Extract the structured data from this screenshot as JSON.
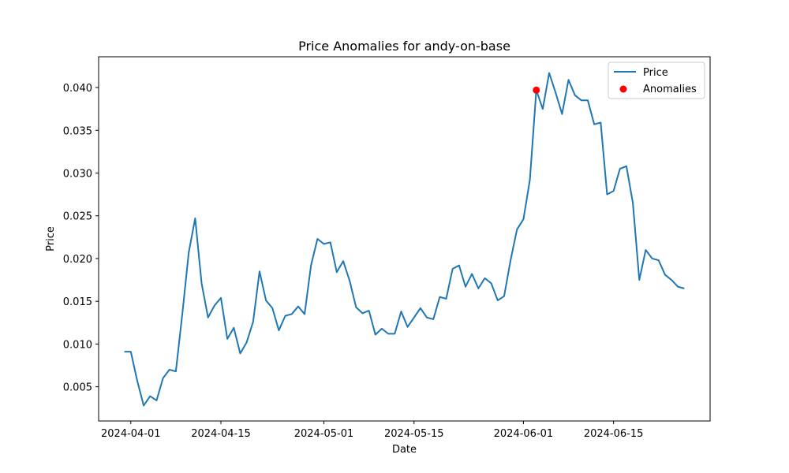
{
  "chart_data": {
    "type": "line",
    "title": "Price Anomalies for andy-on-base",
    "xlabel": "Date",
    "ylabel": "Price",
    "xlim": [
      "2024-03-27",
      "2024-06-30"
    ],
    "ylim": [
      0.001,
      0.0436
    ],
    "x_ticks": [
      "2024-04-01",
      "2024-04-15",
      "2024-05-01",
      "2024-05-15",
      "2024-06-01",
      "2024-06-15"
    ],
    "y_ticks": [
      0.005,
      0.01,
      0.015,
      0.02,
      0.025,
      0.03,
      0.035,
      0.04
    ],
    "y_tick_labels": [
      "0.005",
      "0.010",
      "0.015",
      "0.020",
      "0.025",
      "0.030",
      "0.035",
      "0.040"
    ],
    "grid": false,
    "legend_position": "top-right",
    "colors": {
      "line": "#1f77b4",
      "anomaly": "#ff0000"
    },
    "series": [
      {
        "name": "Price",
        "type": "line",
        "x": [
          "2024-03-31",
          "2024-04-01",
          "2024-04-02",
          "2024-04-03",
          "2024-04-04",
          "2024-04-05",
          "2024-04-06",
          "2024-04-07",
          "2024-04-08",
          "2024-04-09",
          "2024-04-10",
          "2024-04-11",
          "2024-04-12",
          "2024-04-13",
          "2024-04-14",
          "2024-04-15",
          "2024-04-16",
          "2024-04-17",
          "2024-04-18",
          "2024-04-19",
          "2024-04-20",
          "2024-04-21",
          "2024-04-22",
          "2024-04-23",
          "2024-04-24",
          "2024-04-25",
          "2024-04-26",
          "2024-04-27",
          "2024-04-28",
          "2024-04-29",
          "2024-04-30",
          "2024-05-01",
          "2024-05-02",
          "2024-05-03",
          "2024-05-04",
          "2024-05-05",
          "2024-05-06",
          "2024-05-07",
          "2024-05-08",
          "2024-05-09",
          "2024-05-10",
          "2024-05-11",
          "2024-05-12",
          "2024-05-13",
          "2024-05-14",
          "2024-05-15",
          "2024-05-16",
          "2024-05-17",
          "2024-05-18",
          "2024-05-19",
          "2024-05-20",
          "2024-05-21",
          "2024-05-22",
          "2024-05-23",
          "2024-05-24",
          "2024-05-25",
          "2024-05-26",
          "2024-05-27",
          "2024-05-28",
          "2024-05-29",
          "2024-05-30",
          "2024-05-31",
          "2024-06-01",
          "2024-06-02",
          "2024-06-03",
          "2024-06-04",
          "2024-06-05",
          "2024-06-06",
          "2024-06-07",
          "2024-06-08",
          "2024-06-09",
          "2024-06-10",
          "2024-06-11",
          "2024-06-12",
          "2024-06-13",
          "2024-06-14",
          "2024-06-15",
          "2024-06-16",
          "2024-06-17",
          "2024-06-18",
          "2024-06-19",
          "2024-06-20",
          "2024-06-21",
          "2024-06-22",
          "2024-06-23",
          "2024-06-24",
          "2024-06-25",
          "2024-06-26"
        ],
        "y": [
          0.0091,
          0.0091,
          0.0057,
          0.0028,
          0.0039,
          0.0034,
          0.006,
          0.007,
          0.0068,
          0.0135,
          0.0207,
          0.0247,
          0.0171,
          0.0131,
          0.0145,
          0.0154,
          0.0106,
          0.0119,
          0.0089,
          0.0102,
          0.0126,
          0.0185,
          0.0151,
          0.0142,
          0.0116,
          0.0133,
          0.0135,
          0.0144,
          0.0135,
          0.0192,
          0.0223,
          0.0217,
          0.0219,
          0.0184,
          0.0197,
          0.0174,
          0.0143,
          0.0136,
          0.0139,
          0.0111,
          0.0118,
          0.0112,
          0.0112,
          0.0138,
          0.012,
          0.0131,
          0.0142,
          0.0131,
          0.0129,
          0.0155,
          0.0153,
          0.0188,
          0.0192,
          0.0167,
          0.0182,
          0.0165,
          0.0177,
          0.0171,
          0.0151,
          0.0156,
          0.0198,
          0.0234,
          0.0246,
          0.0292,
          0.0397,
          0.0375,
          0.0417,
          0.0394,
          0.0369,
          0.0409,
          0.0391,
          0.0385,
          0.0385,
          0.0357,
          0.0359,
          0.0275,
          0.0279,
          0.0305,
          0.0308,
          0.0265,
          0.0175,
          0.021,
          0.02,
          0.0198,
          0.0181,
          0.0175,
          0.0167,
          0.0165
        ]
      },
      {
        "name": "Anomalies",
        "type": "scatter",
        "x": [
          "2024-06-03"
        ],
        "y": [
          0.0397
        ]
      }
    ]
  }
}
